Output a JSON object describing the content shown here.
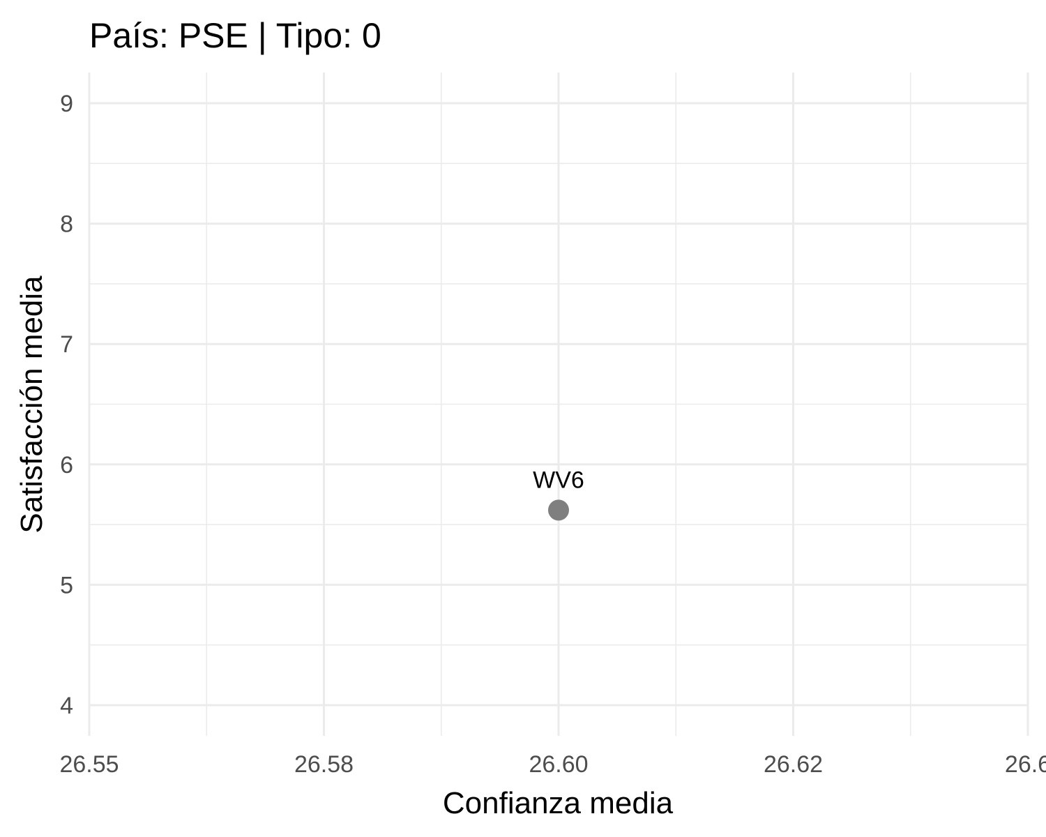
{
  "chart_data": {
    "type": "scatter",
    "title": "País: PSE | Tipo: 0",
    "xlabel": "Confianza media",
    "ylabel": "Satisfacción media",
    "xlim": [
      26.55,
      26.65
    ],
    "ylim": [
      4,
      9
    ],
    "x_ticks": [
      26.55,
      26.575,
      26.6,
      26.625,
      26.65
    ],
    "x_tick_labels": [
      "26.55",
      "26.58",
      "26.60",
      "26.62",
      "26.6"
    ],
    "y_ticks": [
      4,
      5,
      6,
      7,
      8,
      9
    ],
    "y_tick_labels": [
      "4",
      "5",
      "6",
      "7",
      "8",
      "9"
    ],
    "grid": true,
    "points": [
      {
        "x": 26.6,
        "y": 5.62,
        "label": "WV6",
        "color": "#7f7f7f"
      }
    ]
  }
}
